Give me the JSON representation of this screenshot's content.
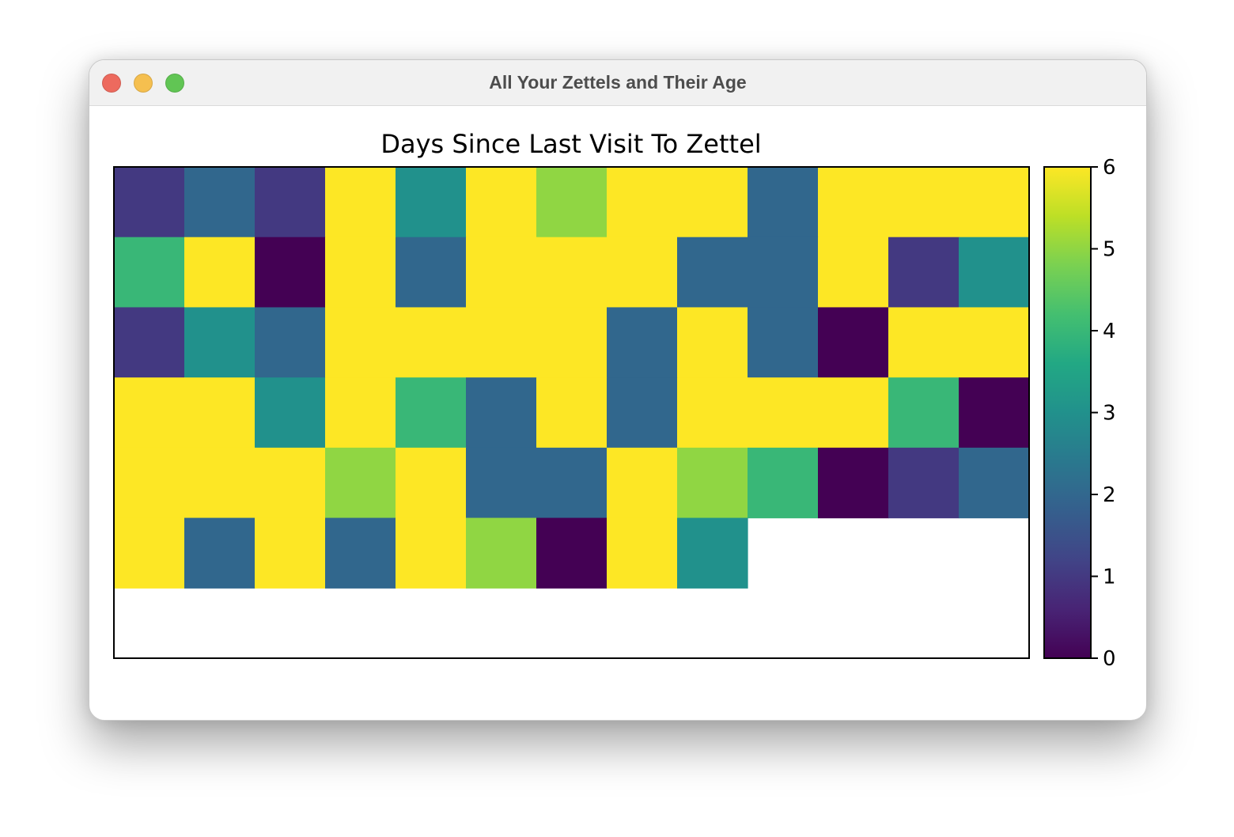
{
  "window": {
    "title": "All Your Zettels and Their Age",
    "controls": [
      {
        "name": "close",
        "color": "#ed6a5e"
      },
      {
        "name": "minimize",
        "color": "#f5bf4f"
      },
      {
        "name": "zoom",
        "color": "#61c554"
      }
    ]
  },
  "chart_data": {
    "type": "heatmap",
    "title": "Days Since Last Visit To Zettel",
    "colormap": "viridis",
    "rows": 7,
    "cols": 13,
    "vmin": 0,
    "vmax": 6,
    "values": [
      [
        1,
        2,
        1,
        6,
        3,
        6,
        5,
        6,
        6,
        2,
        6,
        6,
        6
      ],
      [
        4,
        6,
        0,
        6,
        2,
        6,
        6,
        6,
        2,
        2,
        6,
        1,
        3
      ],
      [
        1,
        3,
        2,
        6,
        6,
        6,
        6,
        2,
        6,
        2,
        0,
        6,
        6
      ],
      [
        6,
        6,
        3,
        6,
        4,
        2,
        6,
        2,
        6,
        6,
        6,
        4,
        0
      ],
      [
        6,
        6,
        6,
        5,
        6,
        2,
        2,
        6,
        5,
        4,
        0,
        1,
        2
      ],
      [
        6,
        2,
        6,
        2,
        6,
        5,
        0,
        6,
        3,
        null,
        null,
        null,
        null
      ],
      [
        null,
        null,
        null,
        null,
        null,
        null,
        null,
        null,
        null,
        null,
        null,
        null,
        null
      ]
    ],
    "colorbar": {
      "ticks": [
        "0",
        "1",
        "2",
        "3",
        "4",
        "5",
        "6"
      ]
    },
    "xticks": [],
    "yticks": []
  }
}
